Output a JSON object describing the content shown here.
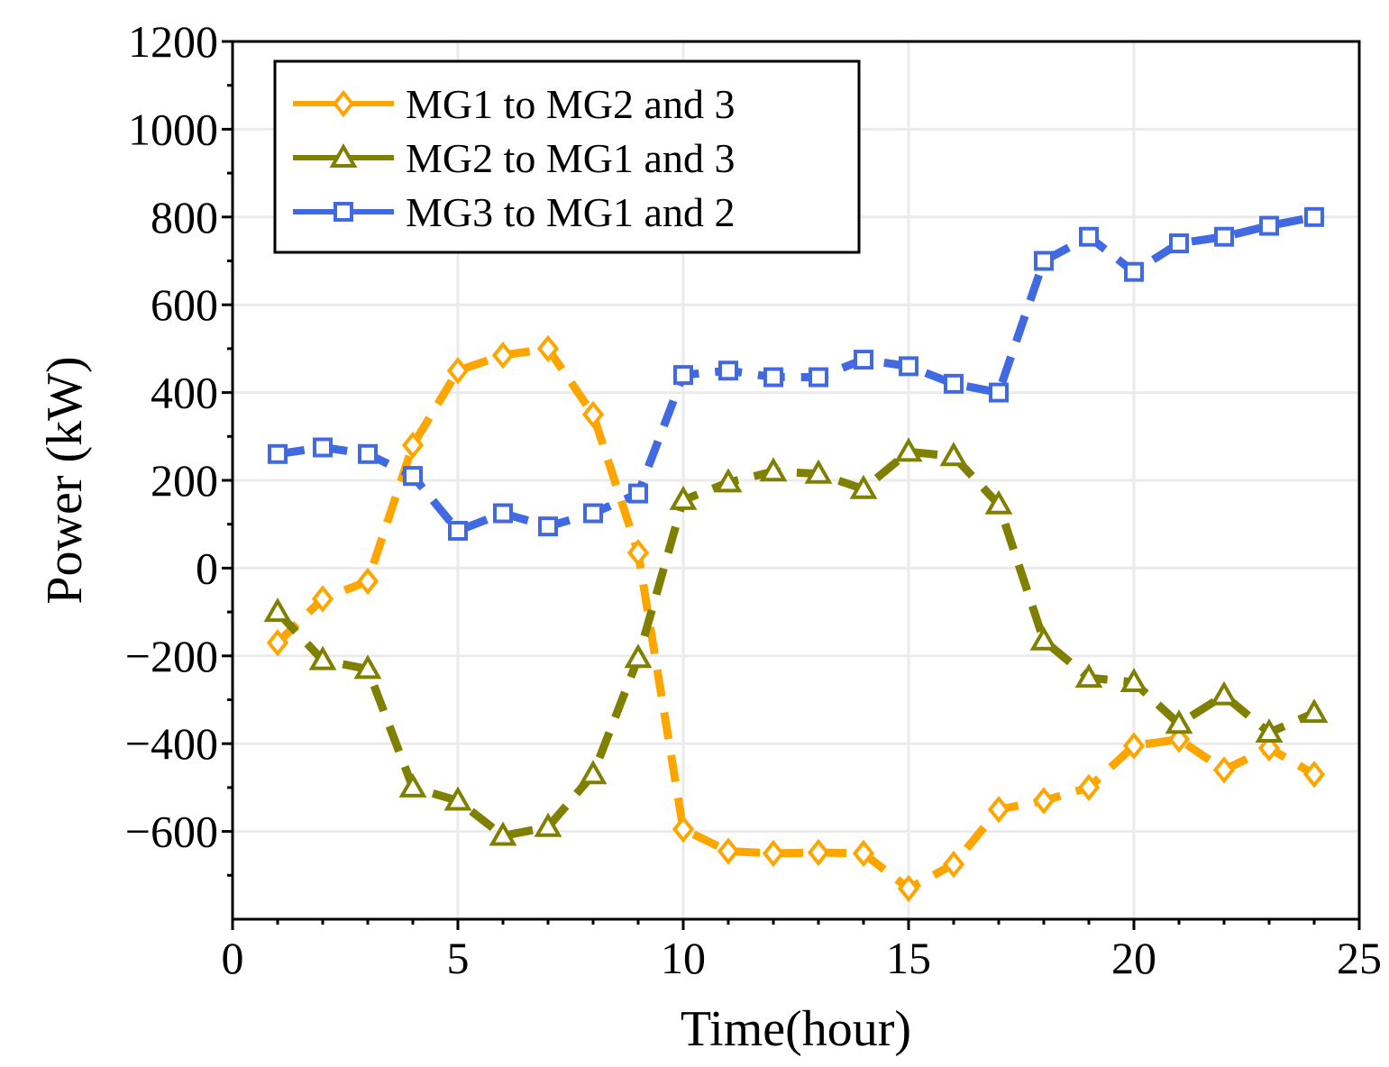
{
  "chart_data": {
    "type": "line",
    "xlabel": "Time(hour)",
    "ylabel": "Power (kW)",
    "xlim": [
      0,
      25
    ],
    "ylim": [
      -800,
      1200
    ],
    "xticks": [
      0,
      5,
      10,
      15,
      20,
      25
    ],
    "yticks": [
      -600,
      -400,
      -200,
      0,
      200,
      400,
      600,
      800,
      1000,
      1200
    ],
    "xtick_labels": [
      "0",
      "5",
      "10",
      "15",
      "20",
      "25"
    ],
    "ytick_labels": [
      "−600",
      "−400",
      "−200",
      "0",
      "200",
      "400",
      "600",
      "800",
      "1000",
      "1200"
    ],
    "grid": true,
    "legend_position": "top-left",
    "x": [
      1,
      2,
      3,
      4,
      5,
      6,
      7,
      8,
      9,
      10,
      11,
      12,
      13,
      14,
      15,
      16,
      17,
      18,
      19,
      20,
      21,
      22,
      23,
      24
    ],
    "series": [
      {
        "name": "MG1 to MG2 and 3",
        "color": "#FFA500",
        "marker": "diamond",
        "values": [
          -170,
          -70,
          -30,
          280,
          450,
          485,
          500,
          350,
          35,
          -595,
          -645,
          -650,
          -648,
          -650,
          -730,
          -675,
          -550,
          -530,
          -500,
          -405,
          -390,
          -460,
          -410,
          -470
        ]
      },
      {
        "name": "MG2 to MG1 and 3",
        "color": "#808000",
        "marker": "triangle",
        "values": [
          -100,
          -210,
          -230,
          -500,
          -530,
          -610,
          -590,
          -470,
          -205,
          155,
          195,
          220,
          215,
          180,
          265,
          255,
          145,
          -165,
          -250,
          -260,
          -355,
          -290,
          -375,
          -330
        ]
      },
      {
        "name": "MG3 to MG1 and 2",
        "color": "#4169E1",
        "marker": "square",
        "values": [
          260,
          275,
          260,
          210,
          85,
          125,
          95,
          125,
          170,
          440,
          450,
          435,
          435,
          475,
          460,
          420,
          400,
          700,
          755,
          675,
          740,
          755,
          780,
          800
        ]
      }
    ]
  }
}
